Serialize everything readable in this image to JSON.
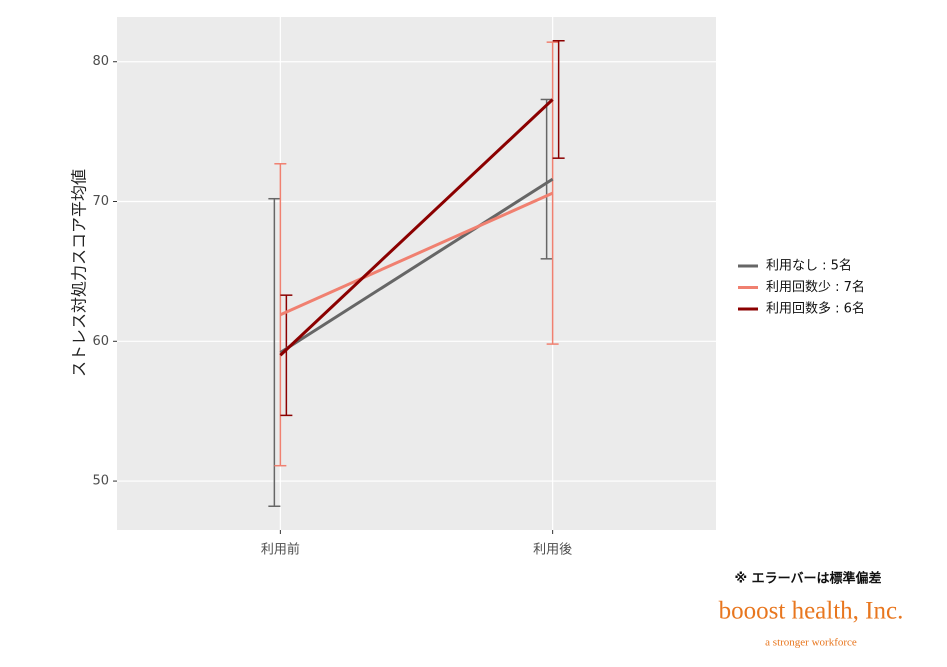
{
  "chart_data": {
    "type": "line",
    "y_label": "ストレス対処力スコア平均値",
    "categories": [
      "利用前",
      "利用後"
    ],
    "series": [
      {
        "name": "利用なし : 5名",
        "color": "#666666",
        "values": [
          59.2,
          71.6
        ],
        "errors": [
          11.0,
          5.7
        ]
      },
      {
        "name": "利用回数少 : 7名",
        "color": "#f08070",
        "values": [
          61.9,
          70.6
        ],
        "errors": [
          10.8,
          10.8
        ]
      },
      {
        "name": "利用回数多 : 6名",
        "color": "#8b0000",
        "values": [
          59.0,
          77.3
        ],
        "errors": [
          4.3,
          4.2
        ]
      }
    ],
    "ylim": [
      46.5,
      83.2
    ],
    "yticks": [
      50,
      60,
      70,
      80
    ],
    "grid": true,
    "legend": "right",
    "note": "※ エラーバーは標準偏差"
  },
  "branding": {
    "name": "booost health, Inc.",
    "tagline": "a stronger workforce"
  }
}
